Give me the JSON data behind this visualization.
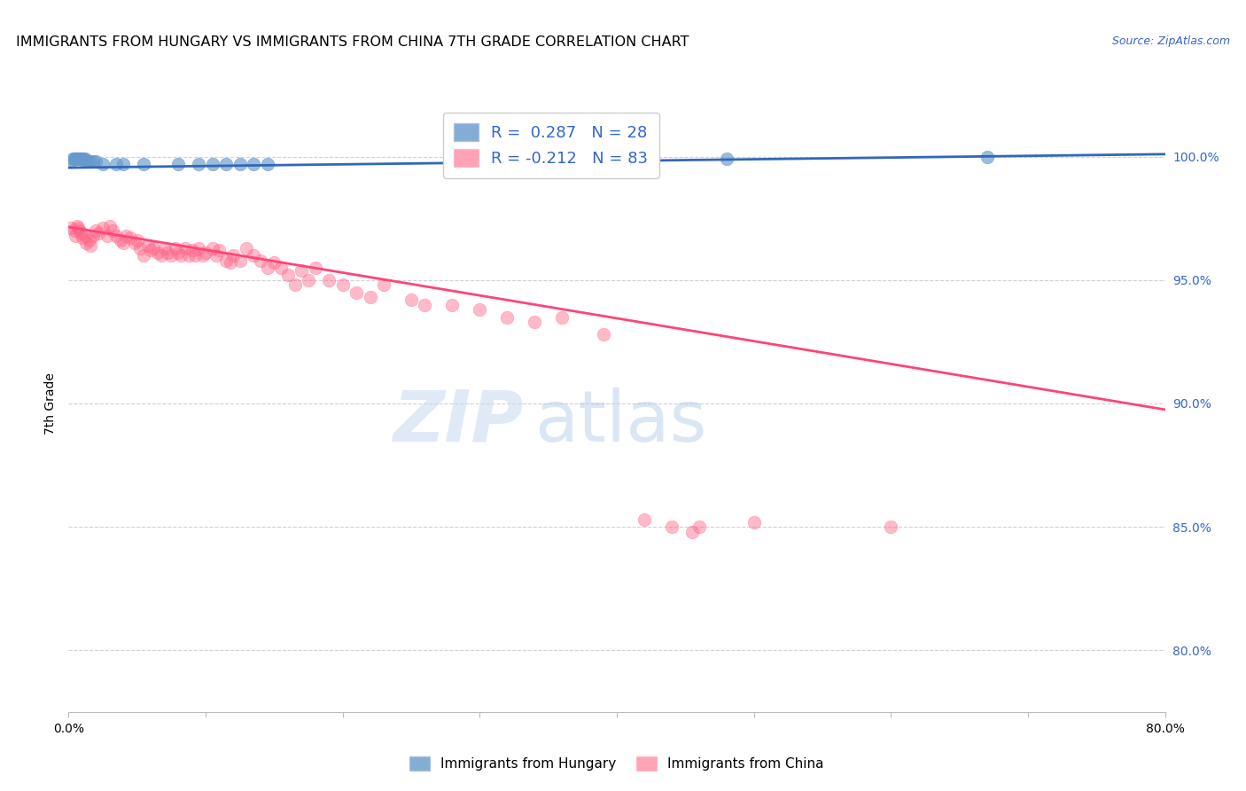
{
  "title": "IMMIGRANTS FROM HUNGARY VS IMMIGRANTS FROM CHINA 7TH GRADE CORRELATION CHART",
  "source": "Source: ZipAtlas.com",
  "ylabel": "7th Grade",
  "xlim": [
    0.0,
    0.8
  ],
  "ylim": [
    0.775,
    1.025
  ],
  "yticks": [
    0.8,
    0.85,
    0.9,
    0.95,
    1.0
  ],
  "ytick_labels": [
    "80.0%",
    "85.0%",
    "90.0%",
    "95.0%",
    "100.0%"
  ],
  "xticks": [
    0.0,
    0.1,
    0.2,
    0.3,
    0.4,
    0.5,
    0.6,
    0.7,
    0.8
  ],
  "xtick_labels": [
    "0.0%",
    "",
    "",
    "",
    "",
    "",
    "",
    "",
    "80.0%"
  ],
  "legend_r_hungary": "R =  0.287",
  "legend_n_hungary": "N = 28",
  "legend_r_china": "R = -0.212",
  "legend_n_china": "N = 83",
  "hungary_color": "#6699cc",
  "china_color": "#ff6688",
  "hungary_trendline_color": "#3366bb",
  "china_trendline_color": "#ff4477",
  "background_color": "#ffffff",
  "grid_color": "#cccccc",
  "hungary_points": [
    [
      0.002,
      0.998
    ],
    [
      0.003,
      0.999
    ],
    [
      0.004,
      0.999
    ],
    [
      0.005,
      0.999
    ],
    [
      0.006,
      0.999
    ],
    [
      0.007,
      0.999
    ],
    [
      0.008,
      0.999
    ],
    [
      0.009,
      0.999
    ],
    [
      0.01,
      0.999
    ],
    [
      0.011,
      0.999
    ],
    [
      0.012,
      0.999
    ],
    [
      0.013,
      0.998
    ],
    [
      0.015,
      0.998
    ],
    [
      0.018,
      0.998
    ],
    [
      0.02,
      0.998
    ],
    [
      0.025,
      0.997
    ],
    [
      0.035,
      0.997
    ],
    [
      0.04,
      0.997
    ],
    [
      0.055,
      0.997
    ],
    [
      0.08,
      0.997
    ],
    [
      0.095,
      0.997
    ],
    [
      0.105,
      0.997
    ],
    [
      0.115,
      0.997
    ],
    [
      0.125,
      0.997
    ],
    [
      0.135,
      0.997
    ],
    [
      0.145,
      0.997
    ],
    [
      0.48,
      0.999
    ],
    [
      0.67,
      1.0
    ]
  ],
  "china_points": [
    [
      0.002,
      0.971
    ],
    [
      0.004,
      0.97
    ],
    [
      0.005,
      0.968
    ],
    [
      0.006,
      0.972
    ],
    [
      0.007,
      0.971
    ],
    [
      0.008,
      0.97
    ],
    [
      0.009,
      0.969
    ],
    [
      0.01,
      0.967
    ],
    [
      0.012,
      0.968
    ],
    [
      0.013,
      0.965
    ],
    [
      0.015,
      0.966
    ],
    [
      0.016,
      0.964
    ],
    [
      0.018,
      0.968
    ],
    [
      0.02,
      0.97
    ],
    [
      0.022,
      0.969
    ],
    [
      0.025,
      0.971
    ],
    [
      0.028,
      0.968
    ],
    [
      0.03,
      0.972
    ],
    [
      0.032,
      0.97
    ],
    [
      0.035,
      0.968
    ],
    [
      0.038,
      0.966
    ],
    [
      0.04,
      0.965
    ],
    [
      0.042,
      0.968
    ],
    [
      0.045,
      0.967
    ],
    [
      0.048,
      0.965
    ],
    [
      0.05,
      0.966
    ],
    [
      0.052,
      0.963
    ],
    [
      0.055,
      0.96
    ],
    [
      0.058,
      0.964
    ],
    [
      0.06,
      0.962
    ],
    [
      0.062,
      0.963
    ],
    [
      0.065,
      0.961
    ],
    [
      0.068,
      0.96
    ],
    [
      0.07,
      0.963
    ],
    [
      0.072,
      0.961
    ],
    [
      0.075,
      0.96
    ],
    [
      0.078,
      0.963
    ],
    [
      0.08,
      0.961
    ],
    [
      0.082,
      0.96
    ],
    [
      0.085,
      0.963
    ],
    [
      0.088,
      0.96
    ],
    [
      0.09,
      0.962
    ],
    [
      0.092,
      0.96
    ],
    [
      0.095,
      0.963
    ],
    [
      0.098,
      0.96
    ],
    [
      0.1,
      0.961
    ],
    [
      0.105,
      0.963
    ],
    [
      0.108,
      0.96
    ],
    [
      0.11,
      0.962
    ],
    [
      0.115,
      0.958
    ],
    [
      0.118,
      0.957
    ],
    [
      0.12,
      0.96
    ],
    [
      0.125,
      0.958
    ],
    [
      0.13,
      0.963
    ],
    [
      0.135,
      0.96
    ],
    [
      0.14,
      0.958
    ],
    [
      0.145,
      0.955
    ],
    [
      0.15,
      0.957
    ],
    [
      0.155,
      0.955
    ],
    [
      0.16,
      0.952
    ],
    [
      0.165,
      0.948
    ],
    [
      0.17,
      0.954
    ],
    [
      0.175,
      0.95
    ],
    [
      0.18,
      0.955
    ],
    [
      0.19,
      0.95
    ],
    [
      0.2,
      0.948
    ],
    [
      0.21,
      0.945
    ],
    [
      0.22,
      0.943
    ],
    [
      0.23,
      0.948
    ],
    [
      0.25,
      0.942
    ],
    [
      0.26,
      0.94
    ],
    [
      0.28,
      0.94
    ],
    [
      0.3,
      0.938
    ],
    [
      0.32,
      0.935
    ],
    [
      0.34,
      0.933
    ],
    [
      0.36,
      0.935
    ],
    [
      0.39,
      0.928
    ],
    [
      0.42,
      0.853
    ],
    [
      0.44,
      0.85
    ],
    [
      0.455,
      0.848
    ],
    [
      0.46,
      0.85
    ],
    [
      0.5,
      0.852
    ],
    [
      0.6,
      0.85
    ]
  ],
  "hungary_trend_x": [
    0.0,
    0.8
  ],
  "hungary_trend_y": [
    0.9955,
    1.001
  ],
  "china_trend_x": [
    0.0,
    0.8
  ],
  "china_trend_y": [
    0.9715,
    0.8975
  ]
}
